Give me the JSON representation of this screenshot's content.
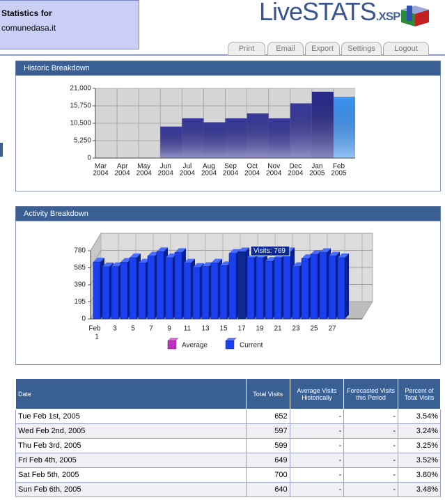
{
  "header": {
    "title": "Statistics for",
    "site": "comunedasa.it",
    "logo": "LiveSTATS",
    "logo_suffix": ".XSP",
    "nav": [
      "Print",
      "Email",
      "Export",
      "Settings",
      "Logout"
    ]
  },
  "chart_data": [
    {
      "type": "bar",
      "title": "Historic Breakdown",
      "categories": [
        [
          "Mar",
          "2004"
        ],
        [
          "Apr",
          "2004"
        ],
        [
          "May",
          "2004"
        ],
        [
          "Jun",
          "2004"
        ],
        [
          "Jul",
          "2004"
        ],
        [
          "Aug",
          "2004"
        ],
        [
          "Sep",
          "2004"
        ],
        [
          "Oct",
          "2004"
        ],
        [
          "Nov",
          "2004"
        ],
        [
          "Dec",
          "2004"
        ],
        [
          "Jan",
          "2005"
        ],
        [
          "Feb",
          "2005"
        ]
      ],
      "values": [
        0,
        0,
        0,
        9500,
        12000,
        10800,
        12000,
        13500,
        12000,
        16500,
        20000,
        18500
      ],
      "colors": [
        "#3a3a9c",
        "#3a3a9c",
        "#3a3a9c",
        "#3a3a9c",
        "#3a3a9c",
        "#3a3a9c",
        "#3a3a9c",
        "#3a3a9c",
        "#3a3a9c",
        "#3a3a9c",
        "#2a2a8c",
        "#3d95f5"
      ],
      "ylim": [
        0,
        21000
      ],
      "yticks": [
        0,
        {
          "value": 5250,
          "label": "5,250"
        },
        {
          "value": 10500,
          "label": "10,500"
        },
        {
          "value": 15750,
          "label": "15,750"
        },
        {
          "value": 21000,
          "label": "21,000"
        }
      ],
      "grid": true
    },
    {
      "type": "bar3d",
      "title": "Activity Breakdown",
      "xlabel": "Feb",
      "categories": [
        "1",
        null,
        "3",
        null,
        "5",
        null,
        "7",
        null,
        "9",
        null,
        "11",
        null,
        "13",
        null,
        "15",
        null,
        "17",
        null,
        "19",
        null,
        "21",
        null,
        "23",
        null,
        "25",
        null,
        "27",
        null
      ],
      "series": [
        {
          "name": "Average",
          "color": "#c030c0",
          "values": [
            null,
            null,
            null,
            null,
            null,
            null,
            null,
            null,
            null,
            null,
            null,
            null,
            null,
            null,
            null,
            null,
            null,
            null,
            null,
            null,
            null,
            null,
            null,
            null,
            null,
            null,
            null,
            null
          ]
        },
        {
          "name": "Current",
          "color": "#1a40f0",
          "highlight_color": "#0c2a90",
          "values": [
            652,
            597,
            599,
            649,
            700,
            640,
            720,
            770,
            700,
            760,
            640,
            590,
            600,
            640,
            610,
            750,
            769,
            700,
            700,
            660,
            700,
            770,
            600,
            690,
            740,
            760,
            720,
            700
          ]
        }
      ],
      "annotation": {
        "text": "Visits: 769",
        "index": 16
      },
      "ylim": [
        0,
        780
      ],
      "yticks": [
        0,
        195,
        390,
        585,
        780
      ],
      "grid": true
    }
  ],
  "table": {
    "headers": [
      "Date",
      "Total Visits",
      "Average Visits Historically",
      "Forecasted Visits this Period",
      "Percent of Total Visits"
    ],
    "rows": [
      [
        "Tue Feb 1st, 2005",
        "652",
        "-",
        "-",
        "3.54%"
      ],
      [
        "Wed Feb 2nd, 2005",
        "597",
        "-",
        "-",
        "3.24%"
      ],
      [
        "Thu Feb 3rd, 2005",
        "599",
        "-",
        "-",
        "3.25%"
      ],
      [
        "Fri Feb 4th, 2005",
        "649",
        "-",
        "-",
        "3.52%"
      ],
      [
        "Sat Feb 5th, 2005",
        "700",
        "-",
        "-",
        "3.80%"
      ],
      [
        "Sun Feb 6th, 2005",
        "640",
        "-",
        "-",
        "3.48%"
      ]
    ]
  }
}
